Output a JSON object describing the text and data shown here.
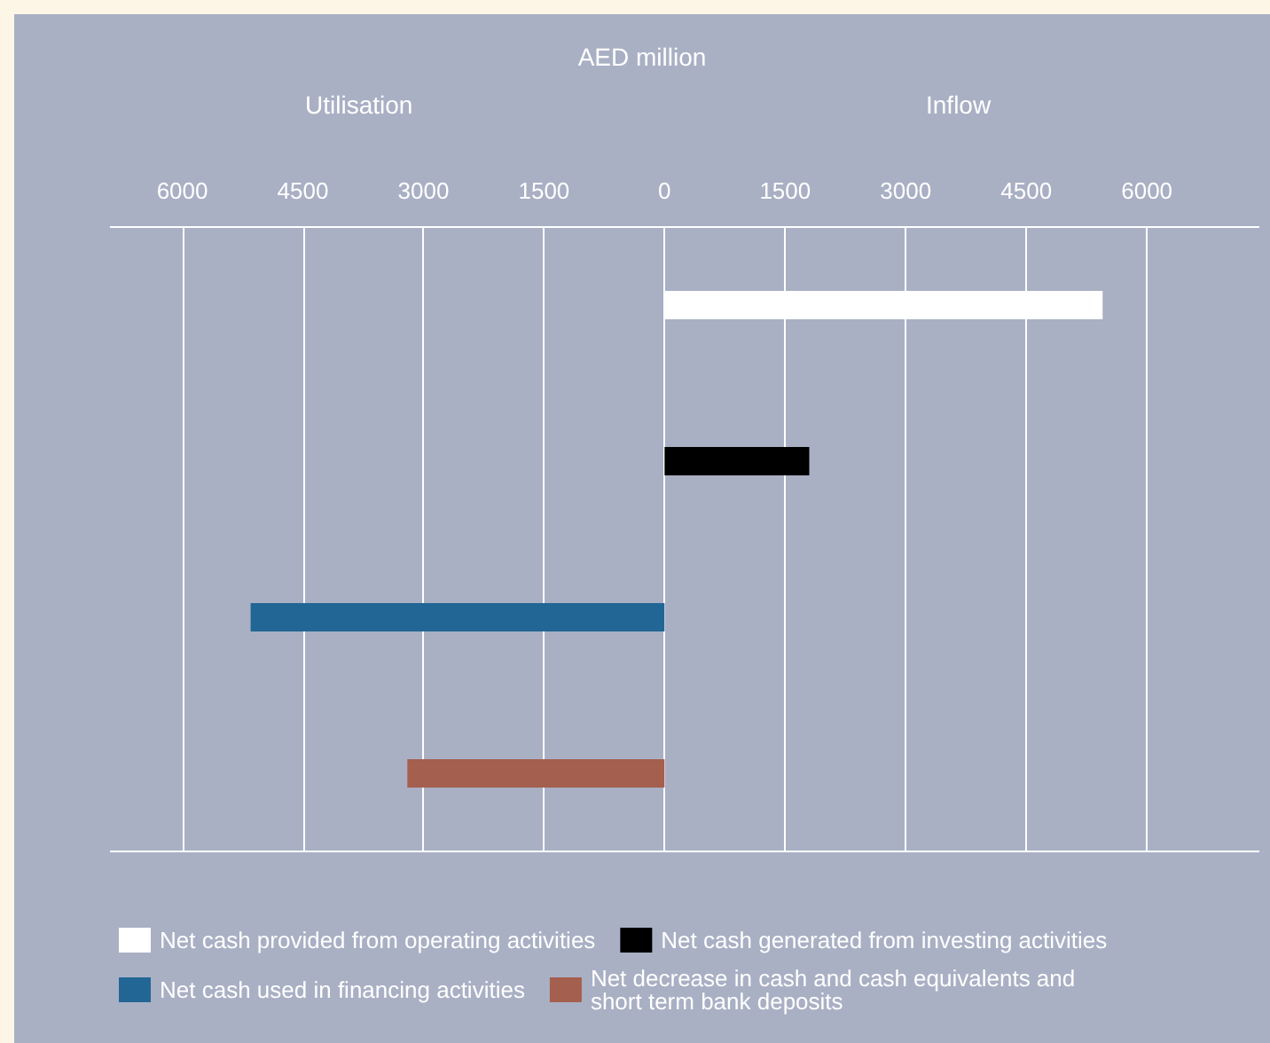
{
  "chart_data": {
    "type": "bar",
    "orientation": "horizontal",
    "title": "AED million",
    "annotations": [
      "Utilisation",
      "Inflow"
    ],
    "categories": [
      null,
      null,
      null,
      null
    ],
    "series": [
      {
        "name": "Net cash provided from operating activities",
        "color": "#ffffff",
        "values": [
          5450,
          null,
          null,
          null
        ]
      },
      {
        "name": "Net cash generated from investing activities",
        "color": "#000000",
        "values": [
          null,
          1800,
          null,
          null
        ]
      },
      {
        "name": "Net cash used in financing activities",
        "color": "#226695",
        "values": [
          null,
          null,
          -5150,
          null
        ]
      },
      {
        "name": "Net decrease in cash and cash equivalents and short term bank deposits",
        "color": "#a45f4f",
        "values": [
          null,
          null,
          null,
          -3200
        ]
      }
    ],
    "xlim": [
      -6900,
      7400
    ],
    "xticks": [
      {
        "value": -6000,
        "label": "6000"
      },
      {
        "value": -4500,
        "label": "4500"
      },
      {
        "value": -3000,
        "label": "3000"
      },
      {
        "value": -1500,
        "label": "1500"
      },
      0,
      1500,
      3000,
      4500,
      6000
    ],
    "grid": "x",
    "legend": "bottom",
    "tick_labels": "x"
  }
}
